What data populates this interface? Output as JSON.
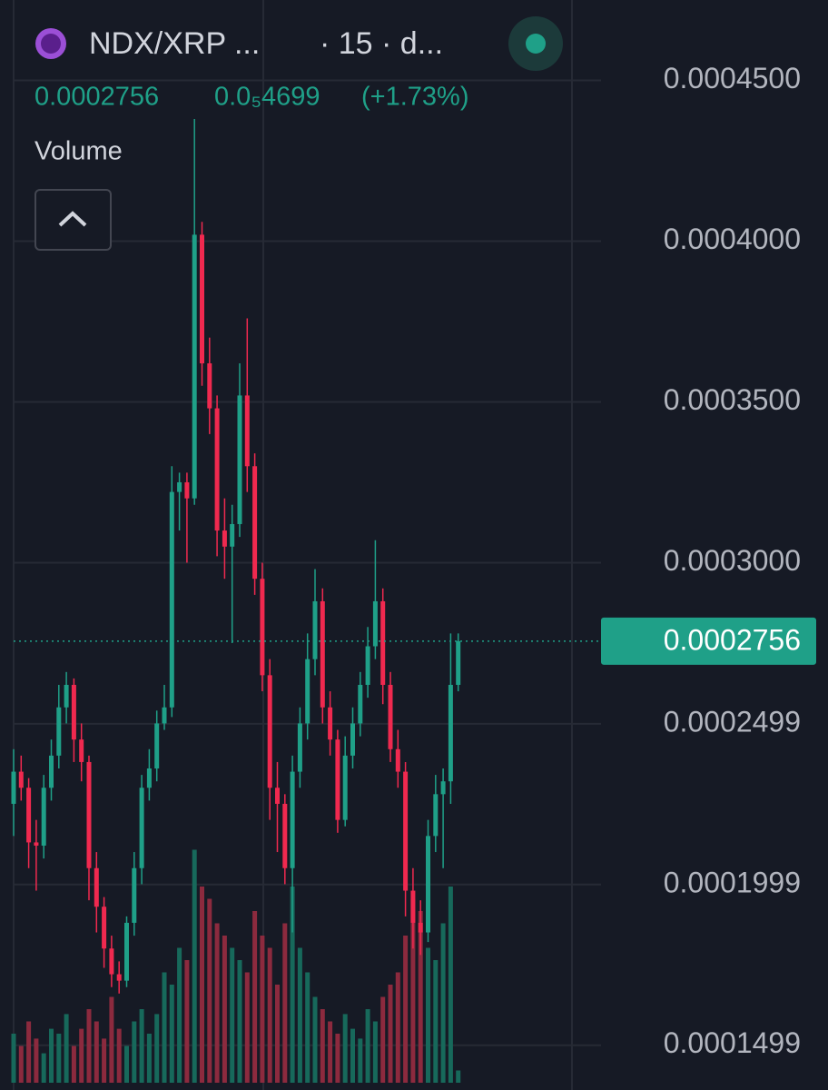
{
  "chart_data": {
    "type": "candlestick",
    "symbol": "NDX/XRP ...",
    "interval": "· 15 · d...",
    "price": "0.0002756",
    "change": "0.0₅4699",
    "change_pct": "(+1.73%)",
    "volume_label": "Volume",
    "up_color": "#1fa088",
    "down_color": "#f0294f",
    "up_volume_color": "#17695b",
    "down_volume_color": "#8c2a3e",
    "open": [
      0.000225,
      0.000235,
      0.00023,
      0.000213,
      0.000212,
      0.00023,
      0.00024,
      0.000255,
      0.000262,
      0.000245,
      0.000238,
      0.000205,
      0.000193,
      0.00018,
      0.000172,
      0.00017,
      0.000188,
      0.000205,
      0.00023,
      0.000236,
      0.00025,
      0.000255,
      0.000322,
      0.000325,
      0.00032,
      0.000402,
      0.000362,
      0.000348,
      0.00031,
      0.000305,
      0.000312,
      0.000352,
      0.00033,
      0.000295,
      0.000265,
      0.00023,
      0.000225,
      0.000205,
      0.000235,
      0.00025,
      0.00027,
      0.000288,
      0.000255,
      0.000245,
      0.00022,
      0.00024,
      0.00025,
      0.000262,
      0.000274,
      0.000288,
      0.000262,
      0.000242,
      0.000235,
      0.000198,
      0.000188,
      0.000185,
      0.000215,
      0.000228,
      0.000232,
      0.000262
    ],
    "high": [
      0.000242,
      0.00024,
      0.000233,
      0.00022,
      0.000234,
      0.000245,
      0.000262,
      0.000266,
      0.000264,
      0.00025,
      0.00024,
      0.00021,
      0.000196,
      0.000184,
      0.000176,
      0.00019,
      0.00021,
      0.000234,
      0.000242,
      0.000254,
      0.000262,
      0.00033,
      0.000328,
      0.000328,
      0.000438,
      0.000406,
      0.00037,
      0.000352,
      0.00032,
      0.000318,
      0.000362,
      0.000376,
      0.000334,
      0.0003,
      0.00027,
      0.000238,
      0.000228,
      0.00024,
      0.000255,
      0.000278,
      0.000298,
      0.000292,
      0.00026,
      0.000248,
      0.000246,
      0.000255,
      0.000266,
      0.00028,
      0.000307,
      0.000292,
      0.000266,
      0.000248,
      0.000238,
      0.000205,
      0.000195,
      0.00022,
      0.000234,
      0.000236,
      0.000278,
      0.000278
    ],
    "low": [
      0.000215,
      0.000226,
      0.000205,
      0.000198,
      0.000208,
      0.000226,
      0.000236,
      0.00025,
      0.000238,
      0.000232,
      0.000195,
      0.000185,
      0.000174,
      0.000168,
      0.000166,
      0.000168,
      0.000184,
      0.0002,
      0.000226,
      0.000232,
      0.000248,
      0.000252,
      0.00031,
      0.0003,
      0.000318,
      0.000355,
      0.00034,
      0.000302,
      0.000295,
      0.000275,
      0.000308,
      0.000322,
      0.00029,
      0.00026,
      0.00022,
      0.00021,
      0.0002,
      0.000185,
      0.00023,
      0.000245,
      0.000265,
      0.00025,
      0.00024,
      0.000216,
      0.000218,
      0.000236,
      0.000246,
      0.000258,
      0.00027,
      0.000256,
      0.000238,
      0.00023,
      0.00019,
      0.00018,
      0.000178,
      0.000182,
      0.00021,
      0.000205,
      0.000225,
      0.00026
    ],
    "close": [
      0.000235,
      0.00023,
      0.000213,
      0.000212,
      0.00023,
      0.00024,
      0.000255,
      0.000262,
      0.000245,
      0.000238,
      0.000205,
      0.000193,
      0.00018,
      0.000172,
      0.00017,
      0.000188,
      0.000205,
      0.00023,
      0.000236,
      0.00025,
      0.000255,
      0.000322,
      0.000325,
      0.00032,
      0.000402,
      0.000362,
      0.000348,
      0.00031,
      0.000305,
      0.000312,
      0.000352,
      0.00033,
      0.000295,
      0.000265,
      0.00023,
      0.000225,
      0.000205,
      0.000235,
      0.00025,
      0.00027,
      0.000288,
      0.000255,
      0.000245,
      0.00022,
      0.00024,
      0.00025,
      0.000262,
      0.000274,
      0.000288,
      0.000262,
      0.000242,
      0.000235,
      0.000198,
      0.000188,
      0.000185,
      0.000215,
      0.000228,
      0.000232,
      0.000262,
      0.0002756
    ],
    "volume": [
      20,
      15,
      25,
      18,
      12,
      22,
      20,
      28,
      15,
      22,
      30,
      25,
      18,
      35,
      22,
      15,
      25,
      30,
      20,
      28,
      45,
      40,
      55,
      50,
      95,
      80,
      75,
      65,
      60,
      55,
      50,
      45,
      70,
      60,
      55,
      40,
      65,
      80,
      55,
      45,
      35,
      30,
      25,
      20,
      28,
      22,
      18,
      30,
      25,
      35,
      40,
      45,
      60,
      75,
      70,
      55,
      50,
      65,
      80,
      5
    ],
    "volume_lim": [
      0,
      100
    ],
    "ylim": [
      0.000136,
      0.000475
    ],
    "yticks": [
      {
        "value": 0.00045,
        "label": "0.0004500"
      },
      {
        "value": 0.0004,
        "label": "0.0004000"
      },
      {
        "value": 0.00035,
        "label": "0.0003500"
      },
      {
        "value": 0.0003,
        "label": "0.0003000"
      },
      0.0002499,
      0.0001999,
      0.0001499
    ],
    "last_price": {
      "value": 0.0002756,
      "label": "0.0002756"
    },
    "grid": true
  }
}
